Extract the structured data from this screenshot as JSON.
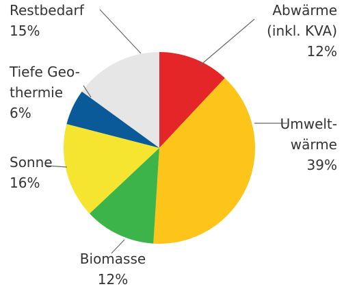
{
  "chart_data": {
    "type": "pie",
    "categories": [
      [
        "Abwärme",
        "(inkl. KVA)"
      ],
      [
        "Umwelt-",
        "wärme"
      ],
      [
        "Biomasse"
      ],
      [
        "Sonne"
      ],
      [
        "Tiefe Geo-",
        "thermie"
      ],
      [
        "Restbedarf"
      ]
    ],
    "values": [
      12,
      39,
      12,
      16,
      6,
      15
    ],
    "value_labels": [
      "12%",
      "39%",
      "12%",
      "16%",
      "6%",
      "15%"
    ],
    "colors": [
      "#e52629",
      "#fdc41a",
      "#3cb44a",
      "#f5e531",
      "#0a5a9a",
      "#e6e6e6"
    ]
  }
}
